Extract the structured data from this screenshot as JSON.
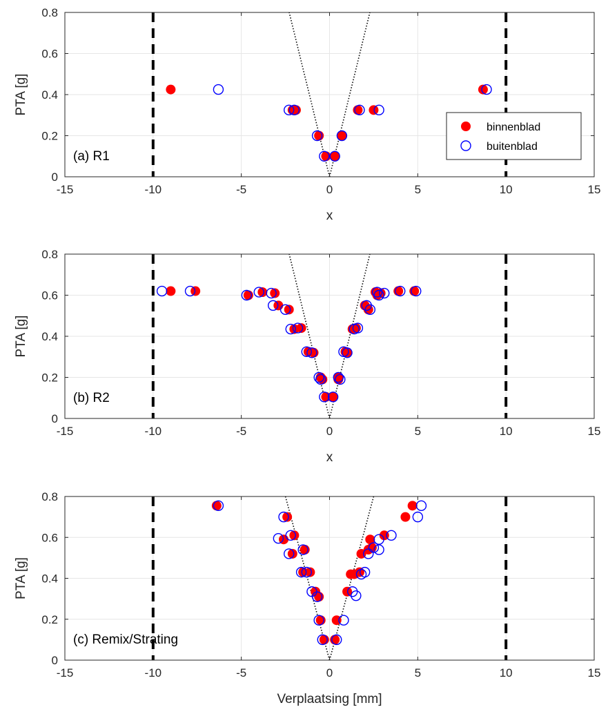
{
  "colors": {
    "binnenblad": "#ff0000",
    "buitenblad": "#0000ff",
    "limit_line": "#000000",
    "trend_line": "#000000",
    "grid": "#e6e6e6",
    "axes": "#262626"
  },
  "chart_data": [
    {
      "type": "scatter",
      "panel_label": "(a) R1",
      "xlabel": "x",
      "ylabel": "PTA [g]",
      "xlim": [
        -15,
        15
      ],
      "ylim": [
        0,
        0.8
      ],
      "xticks": [
        "-15",
        "-10",
        "-5",
        "0",
        "5",
        "10",
        "15"
      ],
      "yticks": [
        "0",
        "0.2",
        "0.4",
        "0.6",
        "0.8"
      ],
      "grid": true,
      "limit_lines_x": [
        -10,
        10
      ],
      "trend_slope": 0.35,
      "legend": {
        "position": "right",
        "entries": [
          "binnenblad",
          "buitenblad"
        ]
      },
      "series": [
        {
          "name": "binnenblad",
          "marker": "filled-circle",
          "points": [
            [
              -9.0,
              0.425
            ],
            [
              8.7,
              0.425
            ],
            [
              -2.1,
              0.325
            ],
            [
              -1.9,
              0.325
            ],
            [
              1.6,
              0.325
            ],
            [
              2.5,
              0.325
            ],
            [
              -0.6,
              0.2
            ],
            [
              0.7,
              0.2
            ],
            [
              -0.2,
              0.1
            ],
            [
              0.3,
              0.1
            ]
          ]
        },
        {
          "name": "buitenblad",
          "marker": "open-circle",
          "points": [
            [
              -6.3,
              0.425
            ],
            [
              8.9,
              0.425
            ],
            [
              -2.3,
              0.325
            ],
            [
              -2.0,
              0.325
            ],
            [
              1.7,
              0.325
            ],
            [
              2.8,
              0.325
            ],
            [
              -0.7,
              0.2
            ],
            [
              0.7,
              0.2
            ],
            [
              -0.3,
              0.1
            ],
            [
              0.3,
              0.1
            ]
          ]
        }
      ]
    },
    {
      "type": "scatter",
      "panel_label": "(b) R2",
      "xlabel": "x",
      "ylabel": "PTA [g]",
      "xlim": [
        -15,
        15
      ],
      "ylim": [
        0,
        0.8
      ],
      "xticks": [
        "-15",
        "-10",
        "-5",
        "0",
        "5",
        "10",
        "15"
      ],
      "yticks": [
        "0",
        "0.2",
        "0.4",
        "0.6",
        "0.8"
      ],
      "grid": true,
      "limit_lines_x": [
        -10,
        10
      ],
      "trend_slope": 0.35,
      "series": [
        {
          "name": "binnenblad",
          "marker": "filled-circle",
          "points": [
            [
              -9.0,
              0.62
            ],
            [
              -7.6,
              0.62
            ],
            [
              -4.6,
              0.6
            ],
            [
              -3.8,
              0.615
            ],
            [
              -3.1,
              0.61
            ],
            [
              -2.9,
              0.55
            ],
            [
              -2.3,
              0.53
            ],
            [
              -2.0,
              0.435
            ],
            [
              -1.6,
              0.44
            ],
            [
              -1.2,
              0.325
            ],
            [
              -0.9,
              0.32
            ],
            [
              -0.5,
              0.2
            ],
            [
              -0.4,
              0.19
            ],
            [
              -0.2,
              0.105
            ],
            [
              0.2,
              0.105
            ],
            [
              0.5,
              0.2
            ],
            [
              0.5,
              0.19
            ],
            [
              0.9,
              0.325
            ],
            [
              1.0,
              0.32
            ],
            [
              1.3,
              0.435
            ],
            [
              1.5,
              0.44
            ],
            [
              2.0,
              0.55
            ],
            [
              2.2,
              0.53
            ],
            [
              2.6,
              0.615
            ],
            [
              2.7,
              0.6
            ],
            [
              2.9,
              0.61
            ],
            [
              3.9,
              0.62
            ],
            [
              4.8,
              0.62
            ]
          ]
        },
        {
          "name": "buitenblad",
          "marker": "open-circle",
          "points": [
            [
              -9.5,
              0.62
            ],
            [
              -7.9,
              0.62
            ],
            [
              -4.7,
              0.6
            ],
            [
              -4.0,
              0.615
            ],
            [
              -3.3,
              0.61
            ],
            [
              -3.2,
              0.55
            ],
            [
              -2.5,
              0.53
            ],
            [
              -2.2,
              0.435
            ],
            [
              -1.8,
              0.44
            ],
            [
              -1.3,
              0.325
            ],
            [
              -1.0,
              0.32
            ],
            [
              -0.6,
              0.2
            ],
            [
              -0.5,
              0.19
            ],
            [
              -0.3,
              0.105
            ],
            [
              0.2,
              0.105
            ],
            [
              0.5,
              0.2
            ],
            [
              0.6,
              0.19
            ],
            [
              0.8,
              0.325
            ],
            [
              1.0,
              0.32
            ],
            [
              1.4,
              0.435
            ],
            [
              1.6,
              0.44
            ],
            [
              2.1,
              0.55
            ],
            [
              2.3,
              0.53
            ],
            [
              2.7,
              0.615
            ],
            [
              2.8,
              0.6
            ],
            [
              3.1,
              0.61
            ],
            [
              4.0,
              0.62
            ],
            [
              4.9,
              0.62
            ]
          ]
        }
      ]
    },
    {
      "type": "scatter",
      "panel_label": "(c) Remix/Strating",
      "xlabel": "Verplaatsing [mm]",
      "ylabel": "PTA [g]",
      "xlim": [
        -15,
        15
      ],
      "ylim": [
        0,
        0.8
      ],
      "xticks": [
        "-15",
        "-10",
        "-5",
        "0",
        "5",
        "10",
        "15"
      ],
      "yticks": [
        "0",
        "0.2",
        "0.4",
        "0.6",
        "0.8"
      ],
      "grid": true,
      "limit_lines_x": [
        -10,
        10
      ],
      "trend_slope": 0.32,
      "series": [
        {
          "name": "binnenblad",
          "marker": "filled-circle",
          "points": [
            [
              -6.4,
              0.755
            ],
            [
              -2.4,
              0.7
            ],
            [
              -2.6,
              0.59
            ],
            [
              -2.0,
              0.61
            ],
            [
              -2.1,
              0.52
            ],
            [
              -1.4,
              0.54
            ],
            [
              -1.5,
              0.43
            ],
            [
              -1.1,
              0.43
            ],
            [
              -0.8,
              0.335
            ],
            [
              -0.6,
              0.31
            ],
            [
              -0.5,
              0.195
            ],
            [
              -0.3,
              0.1
            ],
            [
              0.3,
              0.1
            ],
            [
              0.4,
              0.195
            ],
            [
              1.0,
              0.335
            ],
            [
              1.2,
              0.42
            ],
            [
              1.4,
              0.42
            ],
            [
              1.7,
              0.43
            ],
            [
              1.8,
              0.52
            ],
            [
              2.2,
              0.54
            ],
            [
              2.3,
              0.59
            ],
            [
              2.4,
              0.55
            ],
            [
              3.1,
              0.61
            ],
            [
              4.3,
              0.7
            ],
            [
              4.7,
              0.755
            ]
          ]
        },
        {
          "name": "buitenblad",
          "marker": "open-circle",
          "points": [
            [
              -6.3,
              0.755
            ],
            [
              -2.6,
              0.7
            ],
            [
              -2.9,
              0.595
            ],
            [
              -2.2,
              0.61
            ],
            [
              -2.3,
              0.52
            ],
            [
              -1.5,
              0.54
            ],
            [
              -1.6,
              0.43
            ],
            [
              -1.3,
              0.43
            ],
            [
              -1.0,
              0.335
            ],
            [
              -0.7,
              0.31
            ],
            [
              -0.6,
              0.195
            ],
            [
              -0.4,
              0.1
            ],
            [
              0.4,
              0.1
            ],
            [
              0.8,
              0.195
            ],
            [
              1.3,
              0.335
            ],
            [
              1.5,
              0.315
            ],
            [
              1.8,
              0.42
            ],
            [
              2.0,
              0.43
            ],
            [
              2.2,
              0.52
            ],
            [
              2.5,
              0.55
            ],
            [
              2.8,
              0.59
            ],
            [
              2.8,
              0.54
            ],
            [
              3.5,
              0.61
            ],
            [
              5.0,
              0.7
            ],
            [
              5.2,
              0.755
            ]
          ]
        }
      ]
    }
  ]
}
